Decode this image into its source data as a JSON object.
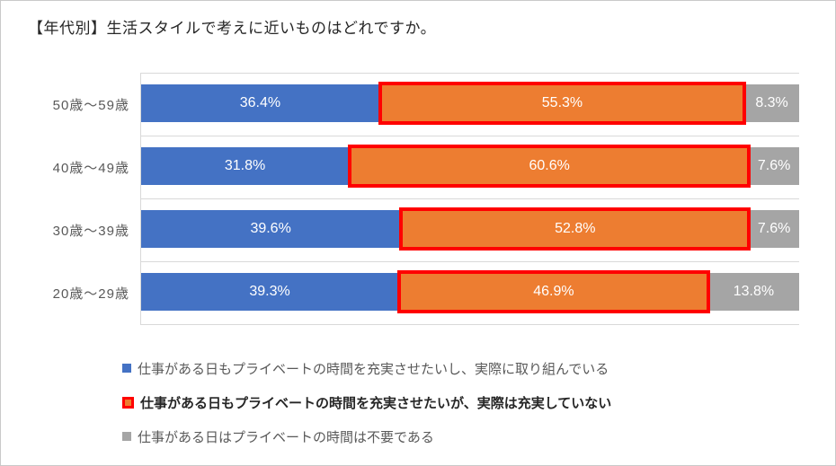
{
  "title": "【年代別】生活スタイルで考えに近いものはどれですか。",
  "colors": {
    "series_blue": "#4472C4",
    "series_orange": "#ED7D31",
    "series_gray": "#A5A5A5",
    "emphasis_outline_red": "#FF0000",
    "gridline": "#D9D9D9",
    "axis_text": "#595959",
    "title_text": "#262626",
    "data_label_text": "#FFFFFF"
  },
  "chart_data": {
    "type": "bar",
    "orientation": "horizontal",
    "stacked": true,
    "unit": "%",
    "title": "【年代別】生活スタイルで考えに近いものはどれですか。",
    "categories": [
      "50歳～59歳",
      "40歳～49歳",
      "30歳～39歳",
      "20歳～29歳"
    ],
    "series": [
      {
        "name": "仕事がある日もプライベートの時間を充実させたいし、実際に取り組んでいる",
        "color": "#4472C4",
        "emphasized": false,
        "values": [
          36.4,
          31.8,
          39.6,
          39.3
        ]
      },
      {
        "name": "仕事がある日もプライベートの時間を充実させたいが、実際は充実していない",
        "color": "#ED7D31",
        "outline": "#FF0000",
        "emphasized": true,
        "values": [
          55.3,
          60.6,
          52.8,
          46.9
        ]
      },
      {
        "name": "仕事がある日はプライベートの時間は不要である",
        "color": "#A5A5A5",
        "emphasized": false,
        "values": [
          8.3,
          7.6,
          7.6,
          13.8
        ]
      }
    ],
    "data_labels": [
      "36.4%",
      "55.3%",
      "8.3%",
      "31.8%",
      "60.6%",
      "7.6%",
      "39.6%",
      "52.8%",
      "7.6%",
      "39.3%",
      "46.9%",
      "13.8%"
    ],
    "xlim": [
      0,
      100
    ],
    "grid": true,
    "legend_position": "bottom"
  }
}
